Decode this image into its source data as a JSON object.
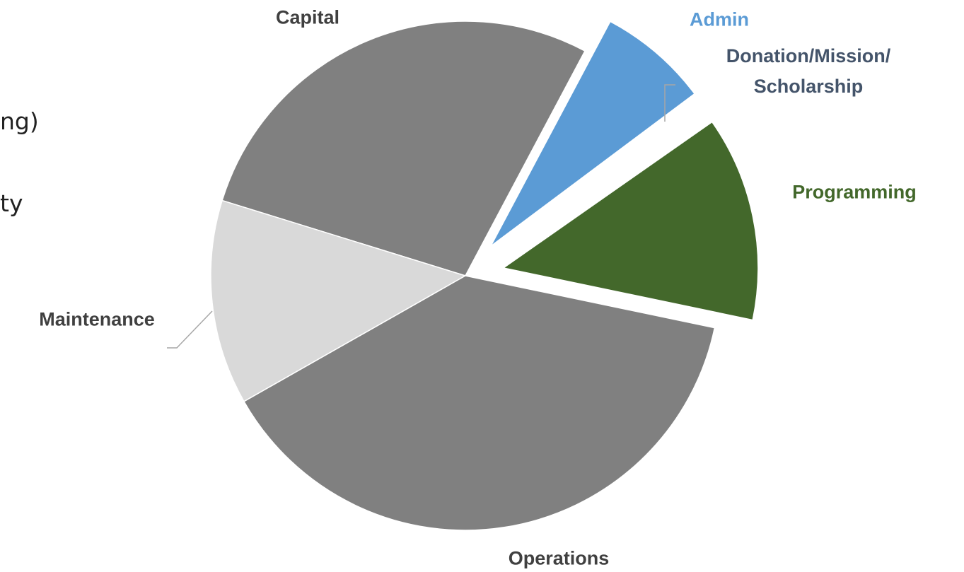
{
  "chart_data": {
    "type": "pie",
    "categories": [
      "Admin",
      "Donation/Mission/ Scholarship",
      "Programming",
      "Operations",
      "Maintenance",
      "Capital"
    ],
    "values": [
      7,
      0.5,
      13,
      38.5,
      13,
      28
    ],
    "colors": [
      "#5b9bd5",
      "#ffffff",
      "#43682b",
      "#808080",
      "#d9d9d9",
      "#808080"
    ],
    "label_colors": [
      "#5b9bd5",
      "#44546a",
      "#43682b",
      "#404040",
      "#404040",
      "#404040"
    ],
    "exploded": [
      true,
      true,
      true,
      false,
      false,
      false
    ]
  },
  "side_text": [
    "ng)",
    "ty"
  ]
}
